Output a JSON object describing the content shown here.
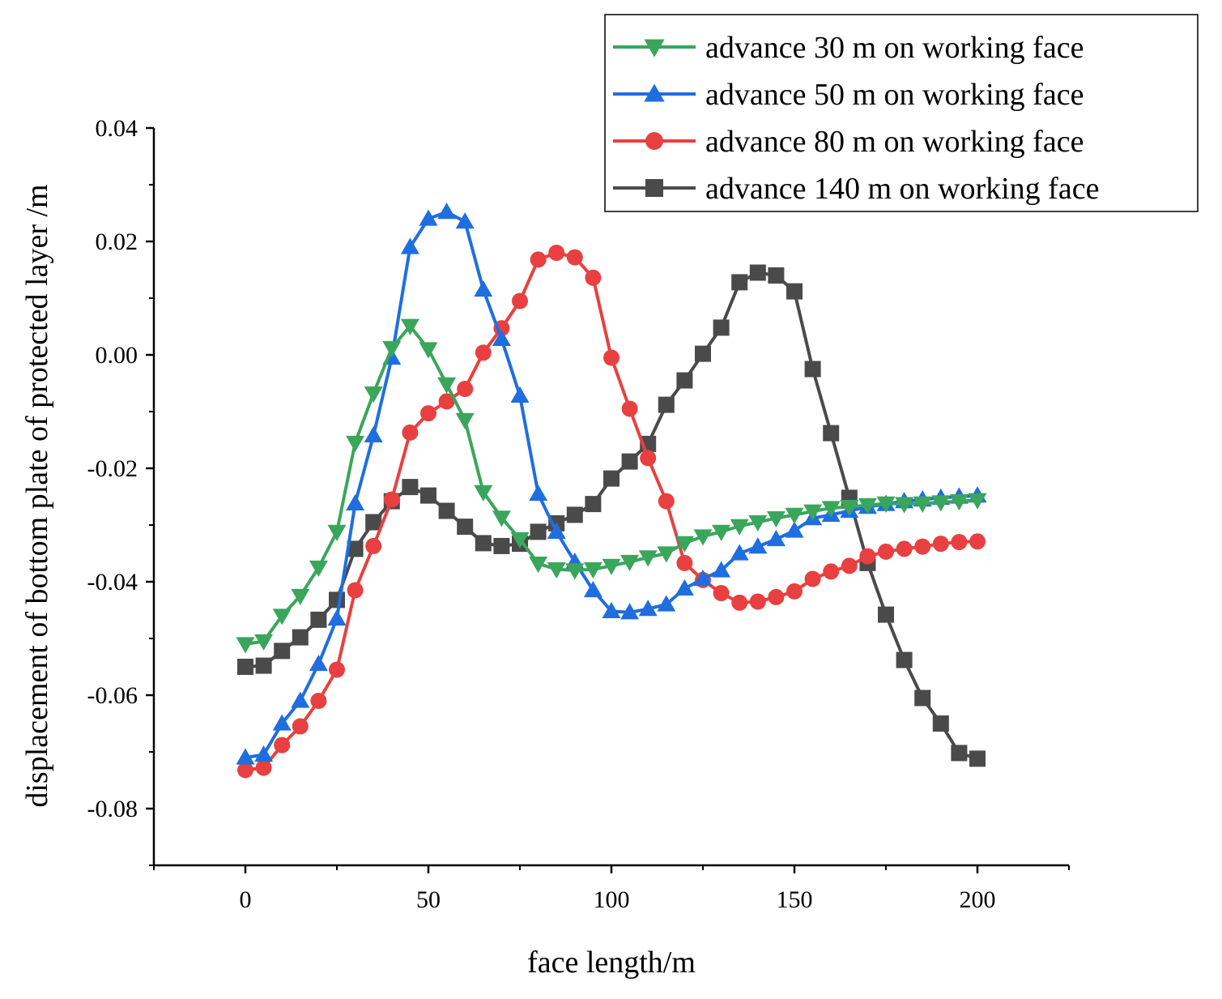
{
  "chart_data": {
    "type": "line",
    "xlabel": "face length/m",
    "ylabel": "displacement of bottom plate of protected layer /m",
    "xlim": [
      -25,
      225
    ],
    "ylim": [
      -0.09,
      0.04
    ],
    "xticks": [
      0,
      50,
      100,
      150,
      200
    ],
    "xtick_labels": [
      "0",
      "50",
      "100",
      "150",
      "200"
    ],
    "yticks": [
      -0.08,
      -0.06,
      -0.04,
      -0.02,
      0.0,
      0.02,
      0.04
    ],
    "ytick_labels": [
      "-0.08",
      "-0.06",
      "-0.04",
      "-0.02",
      "0.00",
      "0.02",
      "0.04"
    ],
    "legend_position": "top-right",
    "x": [
      0,
      5,
      10,
      15,
      20,
      25,
      30,
      35,
      40,
      45,
      50,
      55,
      60,
      65,
      70,
      75,
      80,
      85,
      90,
      95,
      100,
      105,
      110,
      115,
      120,
      125,
      130,
      135,
      140,
      145,
      150,
      155,
      160,
      165,
      170,
      175,
      180,
      185,
      190,
      195,
      200
    ],
    "series": [
      {
        "name": "advance 30 m on working face",
        "color": "#3aa65b",
        "marker": "triangle-down",
        "values": [
          -0.051,
          -0.0505,
          -0.046,
          -0.0425,
          -0.0375,
          -0.0312,
          -0.0155,
          -0.0068,
          0.0012,
          0.0051,
          0.001,
          -0.0052,
          -0.0115,
          -0.0242,
          -0.0287,
          -0.0325,
          -0.0368,
          -0.0378,
          -0.038,
          -0.0378,
          -0.0372,
          -0.0365,
          -0.0357,
          -0.035,
          -0.0332,
          -0.032,
          -0.0312,
          -0.0302,
          -0.0295,
          -0.0288,
          -0.0282,
          -0.0276,
          -0.027,
          -0.0268,
          -0.0265,
          -0.0262,
          -0.0263,
          -0.0262,
          -0.026,
          -0.0258,
          -0.0256
        ]
      },
      {
        "name": "advance 50 m on working face",
        "color": "#1f6ee0",
        "marker": "triangle-up",
        "values": [
          -0.071,
          -0.0705,
          -0.065,
          -0.061,
          -0.0545,
          -0.0465,
          -0.0262,
          -0.0142,
          -0.0005,
          0.019,
          0.024,
          0.0252,
          0.0235,
          0.0115,
          0.0028,
          -0.0072,
          -0.0245,
          -0.0312,
          -0.0365,
          -0.0415,
          -0.0452,
          -0.0454,
          -0.0448,
          -0.044,
          -0.0412,
          -0.0395,
          -0.038,
          -0.035,
          -0.0338,
          -0.0325,
          -0.031,
          -0.0288,
          -0.0282,
          -0.0275,
          -0.0268,
          -0.0263,
          -0.0258,
          -0.0255,
          -0.0252,
          -0.025,
          -0.0248
        ]
      },
      {
        "name": "advance 80 m on working face",
        "color": "#e84040",
        "marker": "circle",
        "values": [
          -0.0732,
          -0.0728,
          -0.0688,
          -0.0655,
          -0.061,
          -0.0555,
          -0.0415,
          -0.0337,
          -0.0255,
          -0.0137,
          -0.0103,
          -0.0082,
          -0.006,
          0.0004,
          0.0047,
          0.0095,
          0.0168,
          0.018,
          0.0172,
          0.0136,
          -0.0005,
          -0.0095,
          -0.0182,
          -0.0258,
          -0.0367,
          -0.0397,
          -0.042,
          -0.0437,
          -0.0435,
          -0.0427,
          -0.0417,
          -0.0395,
          -0.0382,
          -0.0372,
          -0.0355,
          -0.0347,
          -0.0342,
          -0.0338,
          -0.0333,
          -0.033,
          -0.0329
        ]
      },
      {
        "name": "advance 140 m on working face",
        "color": "#4a4a4a",
        "marker": "square",
        "values": [
          -0.055,
          -0.0548,
          -0.0522,
          -0.0498,
          -0.0467,
          -0.0432,
          -0.0342,
          -0.0295,
          -0.0258,
          -0.0233,
          -0.0248,
          -0.0275,
          -0.0303,
          -0.0332,
          -0.0337,
          -0.0333,
          -0.0312,
          -0.0297,
          -0.0282,
          -0.0263,
          -0.0218,
          -0.0188,
          -0.0157,
          -0.0088,
          -0.0045,
          0.0002,
          0.0048,
          0.0128,
          0.0145,
          0.014,
          0.0112,
          -0.0025,
          -0.0138,
          -0.0252,
          -0.0367,
          -0.0458,
          -0.0538,
          -0.0605,
          -0.065,
          -0.0702,
          -0.0712
        ]
      }
    ]
  }
}
